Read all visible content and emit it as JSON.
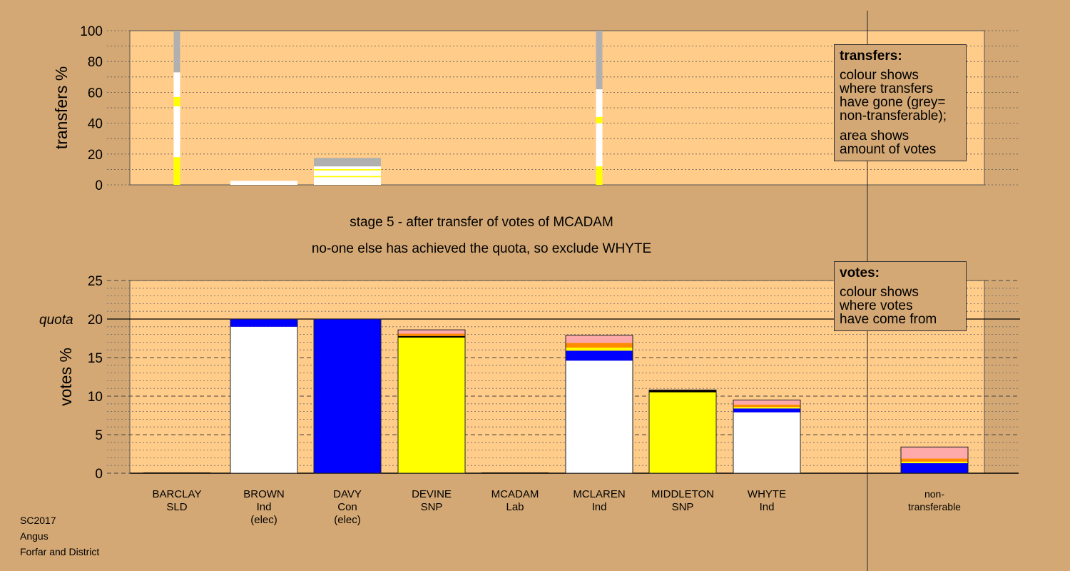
{
  "chart_data": [
    {
      "type": "bar",
      "name": "transfers",
      "ylabel": "transfers %",
      "ylim": [
        0,
        100
      ],
      "yticks": [
        0,
        20,
        40,
        60,
        80,
        100
      ],
      "categories": [
        "BARCLAY",
        "BROWN",
        "DAVY",
        "DEVINE",
        "MCADAM",
        "MCLAREN",
        "MIDDLETON",
        "WHYTE"
      ],
      "stacks": [
        {
          "category": "BARCLAY",
          "width": "narrow",
          "segments": [
            {
              "color": "#ffff00",
              "value": 18
            },
            {
              "color": "#ffffff",
              "value": 33
            },
            {
              "color": "#ffff00",
              "value": 6
            },
            {
              "color": "#ffffff",
              "value": 16
            },
            {
              "color": "#b0b0b0",
              "value": 27
            }
          ]
        },
        {
          "category": "BROWN",
          "width": "wide",
          "segments": [
            {
              "color": "#ffffff",
              "value": 2.6
            }
          ]
        },
        {
          "category": "DAVY",
          "width": "wide",
          "segments": [
            {
              "color": "#ffffff",
              "value": 5
            },
            {
              "color": "#ffff00",
              "value": 0.8
            },
            {
              "color": "#ffffff",
              "value": 3.6
            },
            {
              "color": "#ffff00",
              "value": 0.8
            },
            {
              "color": "#ffffff",
              "value": 1.8
            },
            {
              "color": "#b0b0b0",
              "value": 5.5
            }
          ]
        },
        {
          "category": "MCLAREN",
          "width": "narrow",
          "segments": [
            {
              "color": "#ffff00",
              "value": 12
            },
            {
              "color": "#ffffff",
              "value": 28
            },
            {
              "color": "#ffff00",
              "value": 4
            },
            {
              "color": "#ffffff",
              "value": 18
            },
            {
              "color": "#b0b0b0",
              "value": 38
            }
          ]
        }
      ],
      "legend": {
        "title": "transfers:",
        "lines1": [
          "colour shows",
          "where transfers",
          "have gone (grey=",
          "non-transferable);"
        ],
        "lines2": [
          "area shows",
          "amount of votes"
        ]
      }
    },
    {
      "type": "bar",
      "name": "votes",
      "ylabel": "votes %",
      "ylim": [
        0,
        25
      ],
      "yticks": [
        0,
        5,
        10,
        15,
        20,
        25
      ],
      "quota": {
        "label": "quota",
        "value": 20
      },
      "categories": [
        {
          "name": "BARCLAY",
          "party": "SLD",
          "note": ""
        },
        {
          "name": "BROWN",
          "party": "Ind",
          "note": "(elec)"
        },
        {
          "name": "DAVY",
          "party": "Con",
          "note": "(elec)"
        },
        {
          "name": "DEVINE",
          "party": "SNP",
          "note": ""
        },
        {
          "name": "MCADAM",
          "party": "Lab",
          "note": ""
        },
        {
          "name": "MCLAREN",
          "party": "Ind",
          "note": ""
        },
        {
          "name": "MIDDLETON",
          "party": "SNP",
          "note": ""
        },
        {
          "name": "WHYTE",
          "party": "Ind",
          "note": ""
        },
        {
          "name": "non-",
          "party": "transferable",
          "note": ""
        }
      ],
      "stacks": [
        {
          "category": "BARCLAY",
          "segments": [
            {
              "color": "#000000",
              "value": 0.1
            }
          ]
        },
        {
          "category": "BROWN",
          "segments": [
            {
              "color": "#ffffff",
              "value": 19
            },
            {
              "color": "#0000ff",
              "value": 1
            }
          ]
        },
        {
          "category": "DAVY",
          "segments": [
            {
              "color": "#0000ff",
              "value": 20
            }
          ]
        },
        {
          "category": "DEVINE",
          "segments": [
            {
              "color": "#ffff00",
              "value": 17.6
            },
            {
              "color": "#000000",
              "value": 0.2
            },
            {
              "color": "#ff8c00",
              "value": 0.3
            },
            {
              "color": "#ffaaaa",
              "value": 0.5
            }
          ]
        },
        {
          "category": "MCADAM",
          "segments": [
            {
              "color": "#000000",
              "value": 0.1
            }
          ]
        },
        {
          "category": "MCLAREN",
          "segments": [
            {
              "color": "#ffffff",
              "value": 14.6
            },
            {
              "color": "#0000ff",
              "value": 1.3
            },
            {
              "color": "#ffff00",
              "value": 0.4
            },
            {
              "color": "#ff8c00",
              "value": 0.6
            },
            {
              "color": "#ffaaaa",
              "value": 1
            }
          ]
        },
        {
          "category": "MIDDLETON",
          "segments": [
            {
              "color": "#ffff00",
              "value": 10.5
            },
            {
              "color": "#000000",
              "value": 0.3
            }
          ]
        },
        {
          "category": "WHYTE",
          "segments": [
            {
              "color": "#ffffff",
              "value": 7.9
            },
            {
              "color": "#0000ff",
              "value": 0.5
            },
            {
              "color": "#ffff00",
              "value": 0.2
            },
            {
              "color": "#ff8c00",
              "value": 0.3
            },
            {
              "color": "#ffaaaa",
              "value": 0.6
            }
          ]
        },
        {
          "category": "non-transferable",
          "segments": [
            {
              "color": "#0000ff",
              "value": 1.3
            },
            {
              "color": "#ffff00",
              "value": 0.2
            },
            {
              "color": "#ff8c00",
              "value": 0.4
            },
            {
              "color": "#ffaaaa",
              "value": 1.5
            }
          ]
        }
      ],
      "legend": {
        "title": "votes:",
        "lines": [
          "colour shows",
          "where votes",
          "have come from"
        ]
      }
    }
  ],
  "captions": {
    "stage": "stage 5 - after transfer of votes of MCADAM",
    "status": "no-one else has achieved the quota, so exclude WHYTE"
  },
  "meta": {
    "election": "SC2017",
    "council": "Angus",
    "ward": "Forfar and District"
  },
  "colors": {
    "background": "#d4a874",
    "plot_area": "#ffcc8a",
    "grey": "#b0b0b0"
  }
}
